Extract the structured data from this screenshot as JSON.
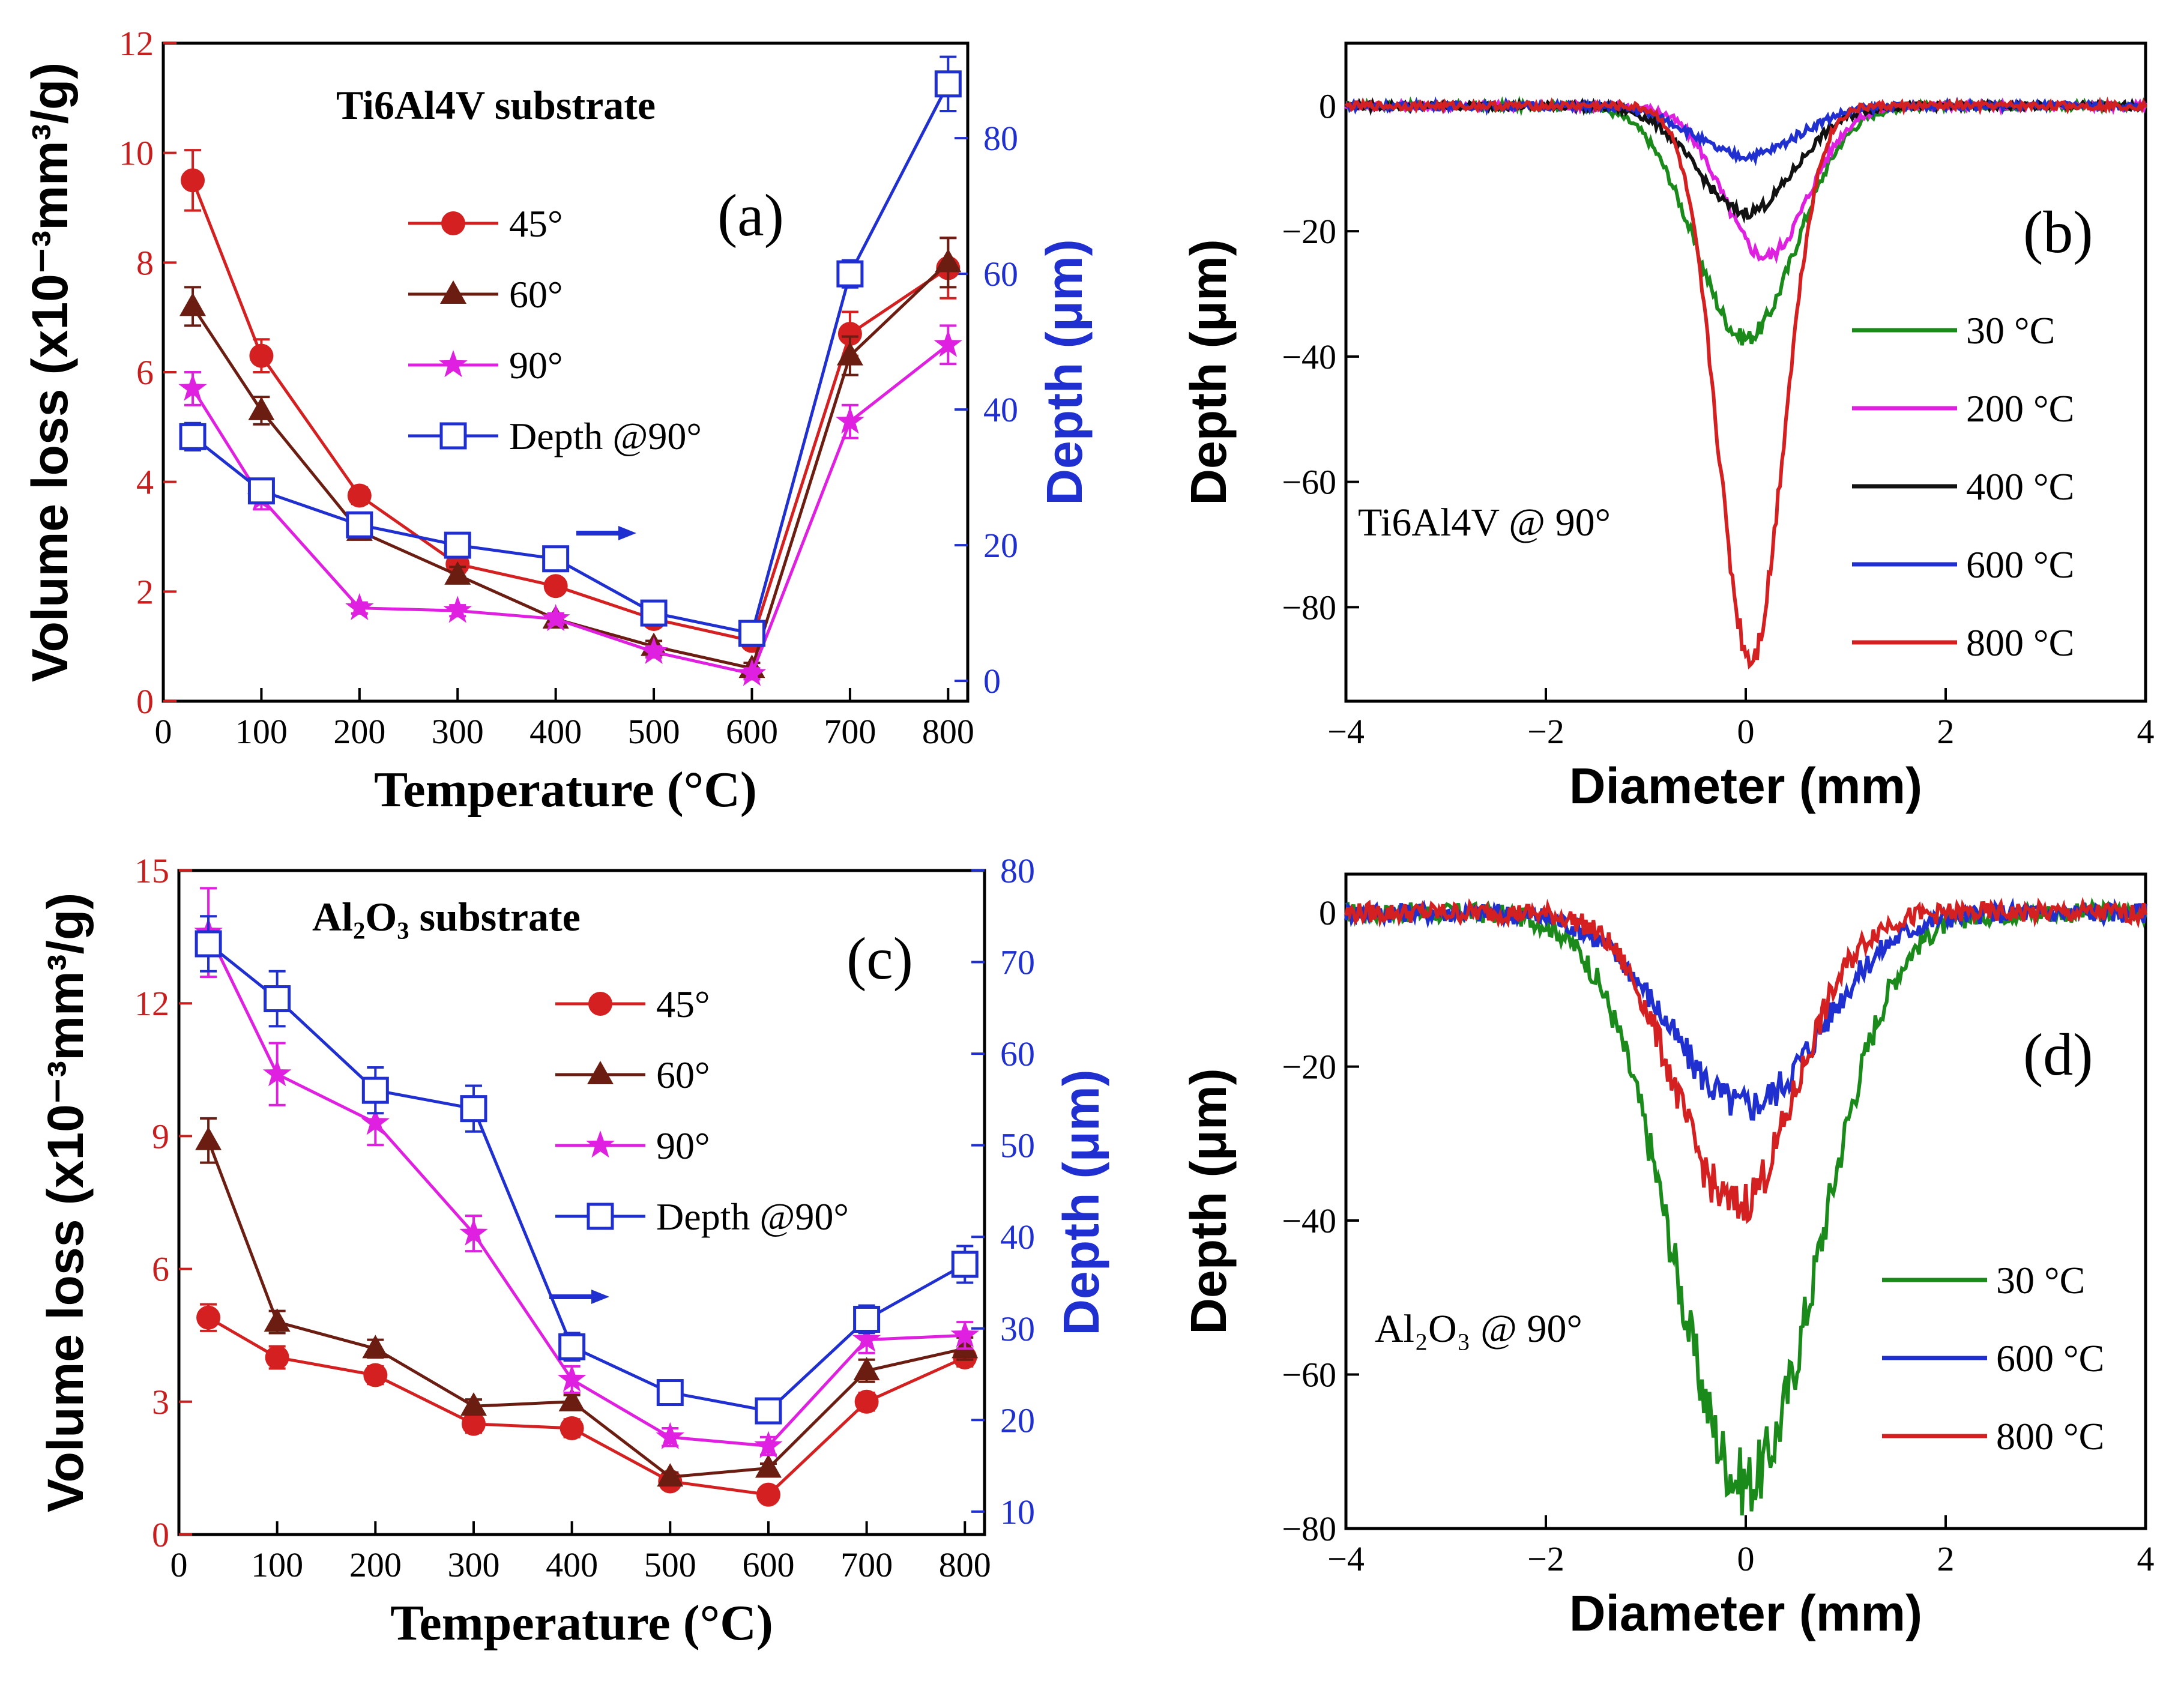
{
  "chart_data": [
    {
      "type": "line",
      "panel": "(a)",
      "annotation": "Ti6Al4V substrate",
      "xlabel": "Temperature (°C)",
      "ylabel": "Volume loss (x10⁻³mm³/g)",
      "y2label": "Depth (μm)",
      "xlim": [
        0,
        820
      ],
      "ylim": [
        0,
        12
      ],
      "y2lim": [
        -3,
        94
      ],
      "xticks": [
        0,
        100,
        200,
        300,
        400,
        500,
        600,
        700,
        800
      ],
      "yticks": [
        0,
        2,
        4,
        6,
        8,
        10,
        12
      ],
      "y2ticks": [
        0,
        20,
        40,
        60,
        80
      ],
      "x": [
        30,
        100,
        200,
        300,
        400,
        500,
        600,
        700,
        800
      ],
      "series": [
        {
          "name": "45°",
          "axis": "left",
          "color": "#d42020",
          "marker": "circle",
          "values": [
            9.5,
            6.3,
            3.75,
            2.5,
            2.1,
            1.5,
            1.1,
            6.7,
            7.9
          ],
          "errors": [
            0.55,
            0.3,
            0.15,
            0.15,
            0.1,
            0.1,
            0.1,
            0.4,
            0.55
          ]
        },
        {
          "name": "60°",
          "axis": "left",
          "color": "#6b1d12",
          "marker": "triangle",
          "values": [
            7.2,
            5.3,
            3.1,
            2.3,
            1.5,
            1.0,
            0.6,
            6.3,
            8.0
          ],
          "errors": [
            0.35,
            0.25,
            0.15,
            0.15,
            0.1,
            0.1,
            0.1,
            0.35,
            0.45
          ]
        },
        {
          "name": "90°",
          "axis": "left",
          "color": "#e020e0",
          "marker": "star",
          "values": [
            5.7,
            3.7,
            1.7,
            1.65,
            1.5,
            0.9,
            0.5,
            5.1,
            6.5
          ],
          "errors": [
            0.3,
            0.2,
            0.1,
            0.1,
            0.1,
            0.1,
            0.1,
            0.3,
            0.35
          ]
        },
        {
          "name": "Depth @90°",
          "axis": "right",
          "color": "#1f2fd0",
          "marker": "square-open",
          "values": [
            36,
            28,
            23,
            20,
            18,
            10,
            7,
            60,
            88
          ],
          "errors": [
            2,
            1.5,
            1,
            1,
            1,
            1,
            1.5,
            2,
            4
          ]
        }
      ],
      "arrow_direction": "right"
    },
    {
      "type": "line",
      "panel": "(b)",
      "annotation": "Ti6Al4V @ 90°",
      "xlabel": "Diameter (mm)",
      "ylabel": "Depth (μm)",
      "xlim": [
        -4,
        4
      ],
      "ylim": [
        -95,
        10
      ],
      "xticks": [
        -4,
        -2,
        0,
        2,
        4
      ],
      "yticks": [
        0,
        -20,
        -40,
        -60,
        -80
      ],
      "series": [
        {
          "name": "30 °C",
          "color": "#1a8a1a",
          "depth": -37,
          "center": 0.0,
          "sigma": 0.5
        },
        {
          "name": "200 °C",
          "color": "#e020e0",
          "depth": -24,
          "center": 0.2,
          "sigma": 0.42
        },
        {
          "name": "400 °C",
          "color": "#111111",
          "depth": -17,
          "center": 0.0,
          "sigma": 0.48
        },
        {
          "name": "600 °C",
          "color": "#1f2fd0",
          "depth": -8,
          "center": 0.0,
          "sigma": 0.5
        },
        {
          "name": "800 °C",
          "color": "#d42020",
          "depth": -88,
          "center": 0.05,
          "sigma": 0.33
        }
      ]
    },
    {
      "type": "line",
      "panel": "(c)",
      "annotation": "Al₂O₃ substrate",
      "xlabel": "Temperature (°C)",
      "ylabel": "Volume loss (x10⁻³mm³/g)",
      "y2label": "Depth (μm)",
      "xlim": [
        0,
        820
      ],
      "ylim": [
        0,
        15
      ],
      "y2lim": [
        7.5,
        80
      ],
      "xticks": [
        0,
        100,
        200,
        300,
        400,
        500,
        600,
        700,
        800
      ],
      "yticks": [
        0,
        3,
        6,
        9,
        12,
        15
      ],
      "y2ticks": [
        10,
        20,
        30,
        40,
        50,
        60,
        70,
        80
      ],
      "x": [
        30,
        100,
        200,
        300,
        400,
        500,
        600,
        700,
        800
      ],
      "series": [
        {
          "name": "45°",
          "axis": "left",
          "color": "#d42020",
          "marker": "circle",
          "values": [
            4.9,
            4.0,
            3.6,
            2.5,
            2.4,
            1.2,
            0.9,
            3.0,
            4.0
          ],
          "errors": [
            0.3,
            0.25,
            0.2,
            0.2,
            0.2,
            0.15,
            0.1,
            0.2,
            0.2
          ]
        },
        {
          "name": "60°",
          "axis": "left",
          "color": "#6b1d12",
          "marker": "triangle",
          "values": [
            8.9,
            4.8,
            4.2,
            2.9,
            3.0,
            1.3,
            1.5,
            3.7,
            4.2
          ],
          "errors": [
            0.5,
            0.25,
            0.2,
            0.15,
            0.15,
            0.1,
            0.1,
            0.25,
            0.25
          ]
        },
        {
          "name": "90°",
          "axis": "left",
          "color": "#e020e0",
          "marker": "star",
          "values": [
            13.6,
            10.4,
            9.3,
            6.8,
            3.5,
            2.2,
            2.0,
            4.4,
            4.5
          ],
          "errors": [
            1.0,
            0.7,
            0.5,
            0.4,
            0.3,
            0.2,
            0.2,
            0.3,
            0.3
          ]
        },
        {
          "name": "Depth @90°",
          "axis": "right",
          "color": "#1f2fd0",
          "marker": "square-open",
          "values": [
            72,
            66,
            56,
            54,
            28,
            23,
            21,
            31,
            37
          ],
          "errors": [
            3,
            3,
            2.5,
            2.5,
            1.5,
            1,
            1,
            1.5,
            2
          ]
        }
      ],
      "arrow_direction": "right"
    },
    {
      "type": "line",
      "panel": "(d)",
      "annotation": "Al₂O₃ @ 90°",
      "xlabel": "Diameter (mm)",
      "ylabel": "Depth (μm)",
      "xlim": [
        -4,
        4
      ],
      "ylim": [
        -80,
        5
      ],
      "xticks": [
        -4,
        -2,
        0,
        2,
        4
      ],
      "yticks": [
        0,
        -20,
        -40,
        -60,
        -80
      ],
      "series": [
        {
          "name": "30 °C",
          "color": "#1a8a1a",
          "depth": -74,
          "center": 0.0,
          "sigma": 0.72
        },
        {
          "name": "600 °C",
          "color": "#1f2fd0",
          "depth": -25,
          "center": 0.0,
          "sigma": 0.75
        },
        {
          "name": "800 °C",
          "color": "#d42020",
          "depth": -38,
          "center": -0.1,
          "sigma": 0.6
        }
      ]
    }
  ]
}
